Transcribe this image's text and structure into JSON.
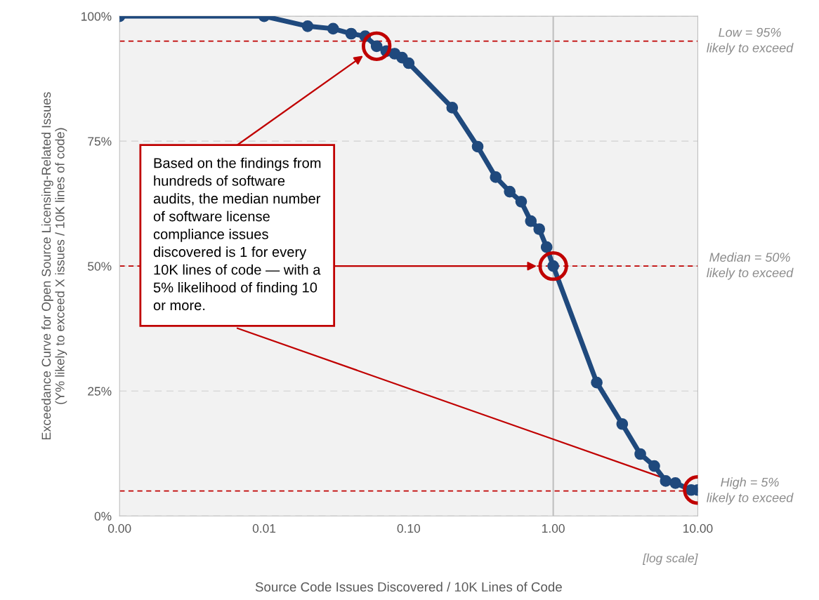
{
  "chart_data": {
    "type": "line",
    "xlabel": "Source Code Issues Discovered / 10K Lines of Code",
    "ylabel": "Exceedance Curve for Open Source Licensing-Related Issues\n(Y% likely to exceed X issues / 10K lines of code)",
    "x": [
      0.001,
      0.01,
      0.02,
      0.03,
      0.04,
      0.05,
      0.06,
      0.07,
      0.08,
      0.09,
      0.1,
      0.2,
      0.3,
      0.4,
      0.5,
      0.6,
      0.7,
      0.8,
      0.9,
      1,
      2,
      3,
      4,
      5,
      6,
      7,
      9,
      10
    ],
    "series": [
      {
        "color": "#1f497d",
        "values": [
          100,
          100,
          98,
          97.5,
          96.5,
          96,
          94,
          93,
          92.5,
          91.7,
          90.6,
          81.7,
          73.9,
          67.8,
          64.9,
          62.9,
          59,
          57.4,
          53.8,
          50,
          26.7,
          18.4,
          12.4,
          10,
          7,
          6.6,
          5.2,
          5.2
        ]
      }
    ],
    "log": "x",
    "xlim": [
      0.001,
      10
    ],
    "xticks": [
      {
        "value": 0.001,
        "label": "0.00"
      },
      {
        "value": 0.01,
        "label": "0.01"
      },
      {
        "value": 0.1,
        "label": "0.10"
      },
      {
        "value": 1,
        "label": "1.00"
      },
      {
        "value": 10,
        "label": "10.00"
      }
    ],
    "ylim": [
      0,
      100
    ],
    "yticks": [
      {
        "value": 0,
        "label": "0%"
      },
      {
        "value": 25,
        "label": "25%"
      },
      {
        "value": 50,
        "label": "50%"
      },
      {
        "value": 75,
        "label": "75%"
      },
      {
        "value": 100,
        "label": "100%"
      }
    ],
    "grid": "y",
    "marker": "circle",
    "line_style": "solid",
    "ref_lines": [
      {
        "axis": "y",
        "value": 95,
        "label": "Low = 95%\nlikely to exceed",
        "color": "#c00000",
        "line_style": "dashed"
      },
      {
        "axis": "y",
        "value": 50,
        "label": "Median = 50%\nlikely to exceed",
        "color": "#c00000",
        "line_style": "dashed"
      },
      {
        "axis": "y",
        "value": 5,
        "label": "High = 5%\nlikely to exceed",
        "color": "#c00000",
        "line_style": "dashed"
      },
      {
        "axis": "x",
        "value": 1,
        "color": "#bfbfbf",
        "line_style": "solid"
      }
    ],
    "annotations": [
      "Based on the findings from\nhundreds of software\naudits, the median number\nof software license\ncompliance issues\ndiscovered is 1 for every\n10K lines of code — with a\n5% likelihood of finding 10\nor more.",
      "[log scale]"
    ]
  }
}
